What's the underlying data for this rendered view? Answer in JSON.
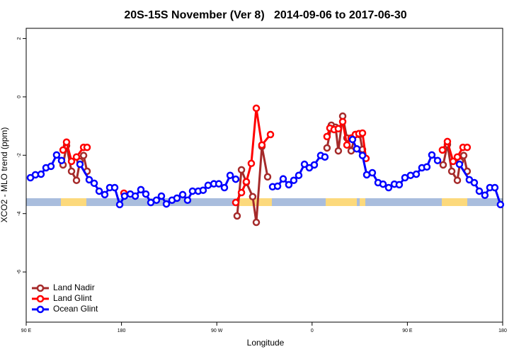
{
  "chart_data": {
    "type": "line",
    "title": "20S-15S November (Ver 8)   2014-09-06 to 2017-06-30",
    "x_label": "Longitude",
    "y_label": "XCO2 - MLO trend (ppm)",
    "xlim": [
      90,
      540
    ],
    "ylim": [
      -7.72,
      2.35
    ],
    "xticks": [
      {
        "value": 90,
        "label": "90 E"
      },
      180,
      {
        "value": 270,
        "label": "90 W"
      },
      0,
      {
        "value": 450,
        "label": "90 E"
      },
      {
        "value": 540,
        "label": "180"
      }
    ],
    "yticks": [
      -6,
      -4,
      -2,
      0,
      2
    ],
    "legend": "bottom-left",
    "series": [
      {
        "name": "Land Nadir",
        "color": "#a52a2a",
        "x": [
          124.8,
          128.1,
          132.8,
          137.5,
          140.8,
          144.2,
          147.5,
          null,
          289.2,
          293.3,
          297.9,
          303.9,
          307.3,
          312.6,
          318.0,
          null,
          374.1,
          378.2,
          382.2,
          384.8,
          388.9,
          392.9,
          396.9,
          400.9,
          404.9,
          407.6,
          null,
          483.8,
          487.8,
          491.9,
          497.2,
          499.9,
          503.2,
          506.5
        ],
        "values": [
          -2.33,
          -1.67,
          -2.55,
          -2.86,
          -2.21,
          -2.01,
          -2.55,
          null,
          -4.08,
          -2.5,
          -2.93,
          -3.42,
          -4.3,
          -1.7,
          -2.74,
          null,
          -1.75,
          -0.97,
          -1.04,
          -1.85,
          -0.66,
          -1.41,
          -1.85,
          -1.29,
          -1.29,
          -1.8,
          null,
          -2.33,
          -1.63,
          -2.55,
          -2.86,
          -2.21,
          -2.01,
          -2.55
        ]
      },
      {
        "name": "Land Glint",
        "color": "#ff0000",
        "x": [
          124.8,
          128.1,
          132.8,
          137.5,
          144.2,
          147.5,
          null,
          182.3,
          null,
          287.9,
          293.3,
          297.9,
          302.6,
          307.3,
          312.6,
          320.7,
          null,
          374.1,
          376.8,
          380.8,
          384.8,
          388.9,
          392.9,
          396.9,
          400.9,
          404.2,
          407.6,
          410.9,
          null,
          483.1,
          487.8,
          493.2,
          497.2,
          502.5,
          506.5
        ],
        "values": [
          -1.82,
          -1.55,
          -2.21,
          -2.06,
          -1.73,
          -1.73,
          null,
          -3.3,
          null,
          -3.62,
          -3.28,
          -2.91,
          -2.28,
          -0.39,
          -1.65,
          -1.29,
          null,
          -1.36,
          -1.07,
          -1.12,
          -1.09,
          -0.85,
          -1.65,
          -1.41,
          -1.29,
          -1.26,
          -1.24,
          -2.11,
          null,
          -1.82,
          -1.53,
          -2.21,
          -2.06,
          -1.73,
          -1.73
        ]
      },
      {
        "name": "Ocean Glint",
        "color": "#0000ff",
        "x": [
          94.0,
          98.7,
          104.0,
          108.7,
          113.4,
          118.7,
          123.4,
          null,
          140.8,
          149.5,
          154.2,
          158.9,
          164.2,
          168.9,
          173.6,
          178.3,
          182.9,
          188.3,
          193.0,
          198.3,
          203.0,
          207.7,
          213.0,
          217.7,
          222.4,
          227.7,
          232.4,
          237.8,
          242.4,
          247.1,
          252.5,
          257.1,
          261.8,
          267.2,
          271.9,
          277.2,
          282.6,
          287.9,
          null,
          322.7,
          327.4,
          332.7,
          338.0,
          342.7,
          347.4,
          352.8,
          357.4,
          362.1,
          368.1,
          372.1,
          null,
          398.2,
          402.2,
          407.6,
          411.6,
          416.9,
          422.3,
          427.0,
          432.3,
          437.7,
          442.3,
          447.7,
          453.0,
          458.4,
          463.7,
          468.4,
          473.1,
          478.5,
          null,
          499.2,
          508.5,
          513.2,
          517.9,
          523.2,
          527.9,
          532.6,
          537.9
        ],
        "values": [
          -2.77,
          -2.67,
          -2.65,
          -2.43,
          -2.38,
          -1.99,
          -2.18,
          null,
          -2.31,
          -2.84,
          -2.96,
          -3.23,
          -3.35,
          -3.11,
          -3.11,
          -3.69,
          -3.4,
          -3.33,
          -3.4,
          -3.18,
          -3.33,
          -3.62,
          -3.54,
          -3.4,
          -3.67,
          -3.54,
          -3.47,
          -3.35,
          -3.54,
          -3.23,
          -3.23,
          -3.2,
          -3.03,
          -2.98,
          -2.98,
          -3.11,
          -2.69,
          -2.82,
          null,
          -3.08,
          -3.06,
          -2.81,
          -3.01,
          -2.86,
          -2.69,
          -2.31,
          -2.43,
          -2.33,
          -2.01,
          -2.06,
          null,
          -1.46,
          -1.78,
          -2.01,
          -2.67,
          -2.6,
          -2.94,
          -2.99,
          -3.11,
          -2.99,
          -3.01,
          -2.77,
          -2.69,
          -2.65,
          -2.43,
          -2.4,
          -1.99,
          -2.18,
          null,
          -2.31,
          -2.84,
          -2.94,
          -3.23,
          -3.37,
          -3.11,
          -3.11,
          -3.69
        ]
      }
    ]
  }
}
